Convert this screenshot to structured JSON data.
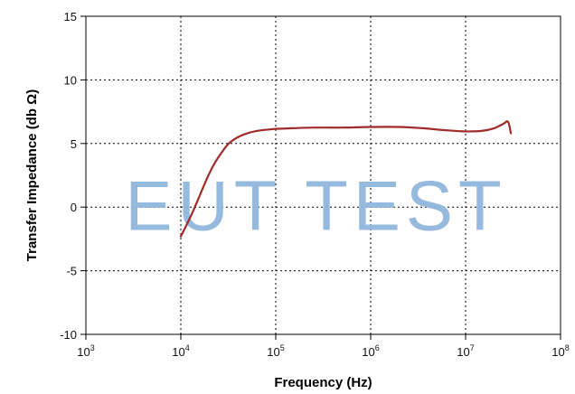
{
  "chart_data": {
    "type": "line",
    "xlabel": "Frequency (Hz)",
    "ylabel": "Transfer Impedance (db Ω)",
    "x_scale": "log",
    "xlim": [
      1000,
      100000000
    ],
    "ylim": [
      -10,
      15
    ],
    "x_ticks": [
      {
        "value": 1000,
        "base": "10",
        "exp": "3"
      },
      {
        "value": 10000,
        "base": "10",
        "exp": "4"
      },
      {
        "value": 100000,
        "base": "10",
        "exp": "5"
      },
      {
        "value": 1000000,
        "base": "10",
        "exp": "6"
      },
      {
        "value": 10000000,
        "base": "10",
        "exp": "7"
      },
      {
        "value": 100000000,
        "base": "10",
        "exp": "8"
      }
    ],
    "y_ticks": [
      {
        "value": 15,
        "label": "15"
      },
      {
        "value": 10,
        "label": "10"
      },
      {
        "value": 5,
        "label": "5"
      },
      {
        "value": 0,
        "label": "0"
      },
      {
        "value": -5,
        "label": "-5"
      },
      {
        "value": -10,
        "label": "-10"
      }
    ],
    "grid": true,
    "series": [
      {
        "color": "#a12b2b",
        "x": [
          10000,
          11500,
          13500,
          16000,
          19000,
          22500,
          27000,
          32000,
          40000,
          50000,
          65000,
          85000,
          100000,
          150000,
          250000,
          500000,
          1000000,
          2000000,
          3500000,
          6000000,
          10000000,
          15000000,
          20000000,
          25000000,
          28000000,
          30000000
        ],
        "y": [
          -2.3,
          -1.4,
          -0.3,
          1.0,
          2.3,
          3.4,
          4.3,
          5.0,
          5.5,
          5.8,
          6.0,
          6.1,
          6.15,
          6.2,
          6.25,
          6.25,
          6.3,
          6.3,
          6.2,
          6.05,
          5.95,
          6.0,
          6.2,
          6.55,
          6.7,
          5.8
        ]
      }
    ],
    "watermark": {
      "text": "EUT TEST",
      "color": "#8fb6dc"
    }
  }
}
